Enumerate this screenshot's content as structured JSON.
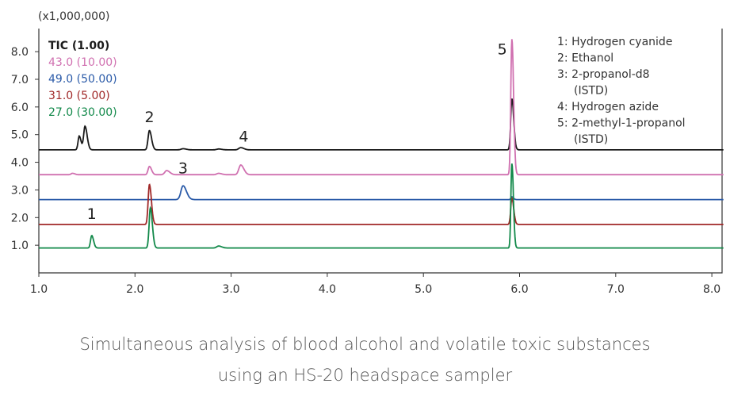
{
  "chart_data": {
    "type": "line",
    "title": "",
    "ylabel_multiplier": "(x1,000,000)",
    "xlim": [
      1.0,
      8.12
    ],
    "ylim": [
      0,
      8.85
    ],
    "x_ticks": [
      "1.0",
      "2.0",
      "3.0",
      "4.0",
      "5.0",
      "6.0",
      "7.0",
      "8.0"
    ],
    "y_ticks": [
      "1.0",
      "2.0",
      "3.0",
      "4.0",
      "5.0",
      "6.0",
      "7.0",
      "8.0"
    ],
    "grid": false,
    "legend_position": "top-left",
    "series": [
      {
        "name": "TIC (1.00)",
        "color": "#1a1a1a",
        "baseline": 4.45,
        "peaks": [
          [
            1.42,
            0.5,
            0.012
          ],
          [
            1.48,
            0.85,
            0.014
          ],
          [
            2.15,
            0.7,
            0.014
          ],
          [
            2.5,
            0.04,
            0.02
          ],
          [
            2.87,
            0.03,
            0.02
          ],
          [
            3.1,
            0.08,
            0.02
          ],
          [
            5.92,
            1.85,
            0.012
          ]
        ]
      },
      {
        "name": "43.0 (10.00)",
        "color": "#d070b0",
        "baseline": 3.55,
        "peaks": [
          [
            1.35,
            0.05,
            0.015
          ],
          [
            2.15,
            0.3,
            0.014
          ],
          [
            2.33,
            0.15,
            0.02
          ],
          [
            2.87,
            0.05,
            0.02
          ],
          [
            3.1,
            0.35,
            0.02
          ],
          [
            5.92,
            4.9,
            0.011
          ]
        ]
      },
      {
        "name": "49.0 (50.00)",
        "color": "#2a5aa8",
        "baseline": 2.65,
        "peaks": [
          [
            2.5,
            0.5,
            0.022
          ],
          [
            5.92,
            0.1,
            0.01
          ]
        ]
      },
      {
        "name": "31.0 (5.00)",
        "color": "#a02828",
        "baseline": 1.75,
        "peaks": [
          [
            2.15,
            1.45,
            0.013
          ],
          [
            5.92,
            0.95,
            0.012
          ]
        ]
      },
      {
        "name": "27.0 (30.00)",
        "color": "#12894a",
        "baseline": 0.9,
        "peaks": [
          [
            1.55,
            0.45,
            0.012
          ],
          [
            2.16,
            1.45,
            0.013
          ],
          [
            2.87,
            0.07,
            0.02
          ],
          [
            5.92,
            3.05,
            0.01
          ]
        ]
      }
    ],
    "peak_labels": [
      {
        "text": "1",
        "x": 1.55,
        "y": 1.95
      },
      {
        "text": "2",
        "x": 2.15,
        "y": 5.45
      },
      {
        "text": "3",
        "x": 2.5,
        "y": 3.6
      },
      {
        "text": "4",
        "x": 3.13,
        "y": 4.75
      },
      {
        "text": "5",
        "x": 5.82,
        "y": 7.9
      }
    ],
    "compound_legend": [
      "1: Hydrogen cyanide",
      "2: Ethanol",
      "3: 2-propanol-d8",
      "(ISTD)",
      "4: Hydrogen azide",
      "5: 2-methyl-1-propanol",
      "(ISTD)"
    ]
  },
  "caption": {
    "line1": "Simultaneous analysis of blood alcohol and volatile toxic substances",
    "line2": "using an HS-20 headspace sampler"
  }
}
